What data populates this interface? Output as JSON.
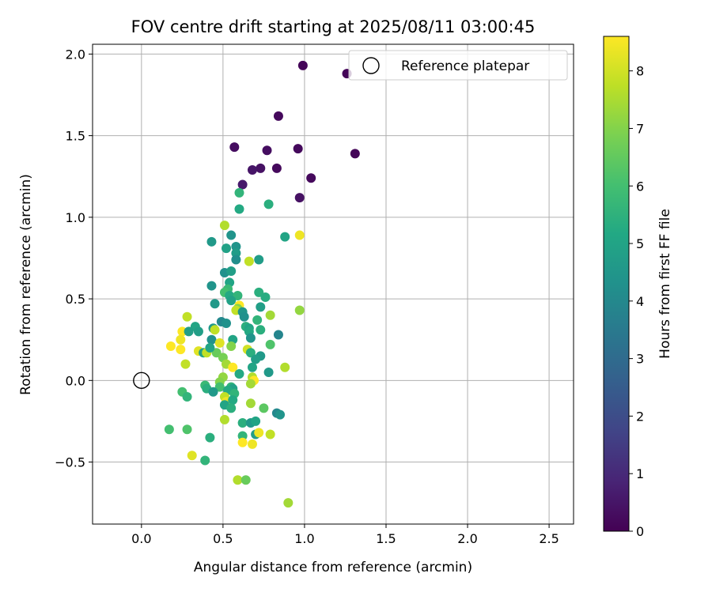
{
  "chart_data": {
    "type": "scatter",
    "title": "FOV centre drift starting at 2025/08/11 03:00:45",
    "xlabel": "Angular distance from reference (arcmin)",
    "ylabel": "Rotation from reference (arcmin)",
    "xlim": [
      -0.3,
      2.65
    ],
    "ylim": [
      -0.88,
      2.06
    ],
    "xticks": [
      0.0,
      0.5,
      1.0,
      1.5,
      2.0,
      2.5
    ],
    "xtick_labels": [
      "0.0",
      "0.5",
      "1.0",
      "1.5",
      "2.0",
      "2.5"
    ],
    "yticks": [
      -0.5,
      0.0,
      0.5,
      1.0,
      1.5,
      2.0
    ],
    "ytick_labels": [
      "−0.5",
      "0.0",
      "0.5",
      "1.0",
      "1.5",
      "2.0"
    ],
    "grid": true,
    "legend": {
      "position": "top-right",
      "label": "Reference platepar"
    },
    "reference_point": {
      "x": 0.0,
      "y": 0.0
    },
    "colorbar": {
      "label": "Hours from first FF file",
      "min": 0,
      "max": 8.6,
      "ticks": [
        0,
        1,
        2,
        3,
        4,
        5,
        6,
        7,
        8
      ],
      "tick_labels": [
        "0",
        "1",
        "2",
        "3",
        "4",
        "5",
        "6",
        "7",
        "8"
      ],
      "colormap": "viridis"
    },
    "points": [
      {
        "x": 0.99,
        "y": 1.93,
        "h": 0.1
      },
      {
        "x": 1.26,
        "y": 1.88,
        "h": 0.1
      },
      {
        "x": 0.84,
        "y": 1.62,
        "h": 0.2
      },
      {
        "x": 0.57,
        "y": 1.43,
        "h": 0.3
      },
      {
        "x": 0.77,
        "y": 1.41,
        "h": 0.3
      },
      {
        "x": 0.96,
        "y": 1.42,
        "h": 0.2
      },
      {
        "x": 1.31,
        "y": 1.39,
        "h": 0.1
      },
      {
        "x": 0.73,
        "y": 1.3,
        "h": 0.4
      },
      {
        "x": 0.68,
        "y": 1.29,
        "h": 0.5
      },
      {
        "x": 0.83,
        "y": 1.3,
        "h": 0.2
      },
      {
        "x": 0.62,
        "y": 1.2,
        "h": 0.6
      },
      {
        "x": 1.04,
        "y": 1.24,
        "h": 0.2
      },
      {
        "x": 0.97,
        "y": 1.12,
        "h": 0.4
      },
      {
        "x": 0.6,
        "y": 1.15,
        "h": 5.6
      },
      {
        "x": 0.6,
        "y": 1.05,
        "h": 5.2
      },
      {
        "x": 0.78,
        "y": 1.08,
        "h": 5.4
      },
      {
        "x": 0.51,
        "y": 0.95,
        "h": 7.6
      },
      {
        "x": 0.55,
        "y": 0.89,
        "h": 4.4
      },
      {
        "x": 0.43,
        "y": 0.85,
        "h": 4.6
      },
      {
        "x": 0.88,
        "y": 0.88,
        "h": 5.0
      },
      {
        "x": 0.97,
        "y": 0.89,
        "h": 8.4
      },
      {
        "x": 0.52,
        "y": 0.81,
        "h": 4.9
      },
      {
        "x": 0.58,
        "y": 0.82,
        "h": 4.4
      },
      {
        "x": 0.58,
        "y": 0.78,
        "h": 4.7
      },
      {
        "x": 0.58,
        "y": 0.74,
        "h": 4.2
      },
      {
        "x": 0.66,
        "y": 0.73,
        "h": 7.8
      },
      {
        "x": 0.72,
        "y": 0.74,
        "h": 4.7
      },
      {
        "x": 0.51,
        "y": 0.66,
        "h": 4.3
      },
      {
        "x": 0.55,
        "y": 0.67,
        "h": 4.8
      },
      {
        "x": 0.54,
        "y": 0.6,
        "h": 5.0
      },
      {
        "x": 0.43,
        "y": 0.58,
        "h": 4.4
      },
      {
        "x": 0.53,
        "y": 0.56,
        "h": 5.8
      },
      {
        "x": 0.51,
        "y": 0.54,
        "h": 6.0
      },
      {
        "x": 0.54,
        "y": 0.52,
        "h": 5.2
      },
      {
        "x": 0.59,
        "y": 0.52,
        "h": 5.6
      },
      {
        "x": 0.72,
        "y": 0.54,
        "h": 5.4
      },
      {
        "x": 0.76,
        "y": 0.51,
        "h": 5.3
      },
      {
        "x": 0.45,
        "y": 0.47,
        "h": 4.6
      },
      {
        "x": 0.55,
        "y": 0.49,
        "h": 4.9
      },
      {
        "x": 0.6,
        "y": 0.46,
        "h": 8.6
      },
      {
        "x": 0.59,
        "y": 0.44,
        "h": 7.0
      },
      {
        "x": 0.58,
        "y": 0.43,
        "h": 7.8
      },
      {
        "x": 0.73,
        "y": 0.45,
        "h": 4.8
      },
      {
        "x": 0.62,
        "y": 0.42,
        "h": 4.5
      },
      {
        "x": 0.63,
        "y": 0.39,
        "h": 4.3
      },
      {
        "x": 0.79,
        "y": 0.4,
        "h": 7.4
      },
      {
        "x": 0.97,
        "y": 0.43,
        "h": 7.2
      },
      {
        "x": 0.28,
        "y": 0.39,
        "h": 7.8
      },
      {
        "x": 0.71,
        "y": 0.37,
        "h": 5.6
      },
      {
        "x": 0.33,
        "y": 0.33,
        "h": 5.0
      },
      {
        "x": 0.44,
        "y": 0.32,
        "h": 4.6
      },
      {
        "x": 0.45,
        "y": 0.31,
        "h": 7.8
      },
      {
        "x": 0.49,
        "y": 0.36,
        "h": 4.0
      },
      {
        "x": 0.52,
        "y": 0.35,
        "h": 4.3
      },
      {
        "x": 0.64,
        "y": 0.33,
        "h": 5.4
      },
      {
        "x": 0.66,
        "y": 0.32,
        "h": 5.0
      },
      {
        "x": 0.73,
        "y": 0.31,
        "h": 5.4
      },
      {
        "x": 0.25,
        "y": 0.3,
        "h": 8.6
      },
      {
        "x": 0.29,
        "y": 0.3,
        "h": 4.8
      },
      {
        "x": 0.35,
        "y": 0.3,
        "h": 4.8
      },
      {
        "x": 0.66,
        "y": 0.3,
        "h": 5.2
      },
      {
        "x": 0.84,
        "y": 0.28,
        "h": 3.9
      },
      {
        "x": 0.43,
        "y": 0.25,
        "h": 4.3
      },
      {
        "x": 0.56,
        "y": 0.25,
        "h": 5.0
      },
      {
        "x": 0.67,
        "y": 0.26,
        "h": 4.4
      },
      {
        "x": 0.24,
        "y": 0.25,
        "h": 8.4
      },
      {
        "x": 0.48,
        "y": 0.23,
        "h": 8.2
      },
      {
        "x": 0.55,
        "y": 0.21,
        "h": 7.0
      },
      {
        "x": 0.79,
        "y": 0.22,
        "h": 6.2
      },
      {
        "x": 0.18,
        "y": 0.21,
        "h": 8.6
      },
      {
        "x": 0.24,
        "y": 0.19,
        "h": 8.6
      },
      {
        "x": 0.35,
        "y": 0.18,
        "h": 8.2
      },
      {
        "x": 0.38,
        "y": 0.17,
        "h": 4.9
      },
      {
        "x": 0.4,
        "y": 0.17,
        "h": 7.8
      },
      {
        "x": 0.46,
        "y": 0.17,
        "h": 6.6
      },
      {
        "x": 0.42,
        "y": 0.2,
        "h": 5.0
      },
      {
        "x": 0.65,
        "y": 0.19,
        "h": 8.0
      },
      {
        "x": 0.67,
        "y": 0.17,
        "h": 5.4
      },
      {
        "x": 0.73,
        "y": 0.15,
        "h": 4.6
      },
      {
        "x": 0.5,
        "y": 0.14,
        "h": 6.8
      },
      {
        "x": 0.7,
        "y": 0.13,
        "h": 4.8
      },
      {
        "x": 0.27,
        "y": 0.1,
        "h": 7.8
      },
      {
        "x": 0.52,
        "y": 0.1,
        "h": 7.4
      },
      {
        "x": 0.56,
        "y": 0.08,
        "h": 8.6
      },
      {
        "x": 0.68,
        "y": 0.08,
        "h": 5.0
      },
      {
        "x": 0.78,
        "y": 0.05,
        "h": 4.6
      },
      {
        "x": 0.88,
        "y": 0.08,
        "h": 7.6
      },
      {
        "x": 0.5,
        "y": 0.02,
        "h": 7.2
      },
      {
        "x": 0.6,
        "y": 0.04,
        "h": 5.2
      },
      {
        "x": 0.68,
        "y": 0.02,
        "h": 7.6
      },
      {
        "x": 0.69,
        "y": 0.0,
        "h": 8.6
      },
      {
        "x": 0.48,
        "y": -0.01,
        "h": 7.0
      },
      {
        "x": 0.67,
        "y": -0.02,
        "h": 7.4
      },
      {
        "x": 0.39,
        "y": -0.03,
        "h": 5.8
      },
      {
        "x": 0.4,
        "y": -0.05,
        "h": 5.4
      },
      {
        "x": 0.48,
        "y": -0.04,
        "h": 6.0
      },
      {
        "x": 0.55,
        "y": -0.04,
        "h": 5.6
      },
      {
        "x": 0.56,
        "y": -0.05,
        "h": 4.9
      },
      {
        "x": 0.44,
        "y": -0.07,
        "h": 4.6
      },
      {
        "x": 0.53,
        "y": -0.06,
        "h": 5.2
      },
      {
        "x": 0.57,
        "y": -0.08,
        "h": 5.6
      },
      {
        "x": 0.25,
        "y": -0.07,
        "h": 6.0
      },
      {
        "x": 0.28,
        "y": -0.1,
        "h": 5.6
      },
      {
        "x": 0.51,
        "y": -0.1,
        "h": 7.8
      },
      {
        "x": 0.52,
        "y": -0.13,
        "h": 8.4
      },
      {
        "x": 0.56,
        "y": -0.12,
        "h": 5.2
      },
      {
        "x": 0.51,
        "y": -0.15,
        "h": 5.0
      },
      {
        "x": 0.55,
        "y": -0.17,
        "h": 5.4
      },
      {
        "x": 0.67,
        "y": -0.14,
        "h": 7.4
      },
      {
        "x": 0.75,
        "y": -0.17,
        "h": 6.4
      },
      {
        "x": 0.83,
        "y": -0.2,
        "h": 4.0
      },
      {
        "x": 0.85,
        "y": -0.21,
        "h": 4.4
      },
      {
        "x": 0.51,
        "y": -0.24,
        "h": 7.6
      },
      {
        "x": 0.62,
        "y": -0.26,
        "h": 5.4
      },
      {
        "x": 0.67,
        "y": -0.26,
        "h": 4.6
      },
      {
        "x": 0.7,
        "y": -0.25,
        "h": 5.0
      },
      {
        "x": 0.17,
        "y": -0.3,
        "h": 6.0
      },
      {
        "x": 0.28,
        "y": -0.3,
        "h": 6.2
      },
      {
        "x": 0.62,
        "y": -0.34,
        "h": 5.6
      },
      {
        "x": 0.7,
        "y": -0.33,
        "h": 4.8
      },
      {
        "x": 0.72,
        "y": -0.32,
        "h": 8.4
      },
      {
        "x": 0.79,
        "y": -0.33,
        "h": 7.8
      },
      {
        "x": 0.42,
        "y": -0.35,
        "h": 5.4
      },
      {
        "x": 0.62,
        "y": -0.38,
        "h": 8.6
      },
      {
        "x": 0.68,
        "y": -0.39,
        "h": 8.4
      },
      {
        "x": 0.31,
        "y": -0.46,
        "h": 8.2
      },
      {
        "x": 0.39,
        "y": -0.49,
        "h": 5.6
      },
      {
        "x": 0.59,
        "y": -0.61,
        "h": 7.6
      },
      {
        "x": 0.64,
        "y": -0.61,
        "h": 6.6
      },
      {
        "x": 0.9,
        "y": -0.75,
        "h": 7.4
      }
    ]
  }
}
